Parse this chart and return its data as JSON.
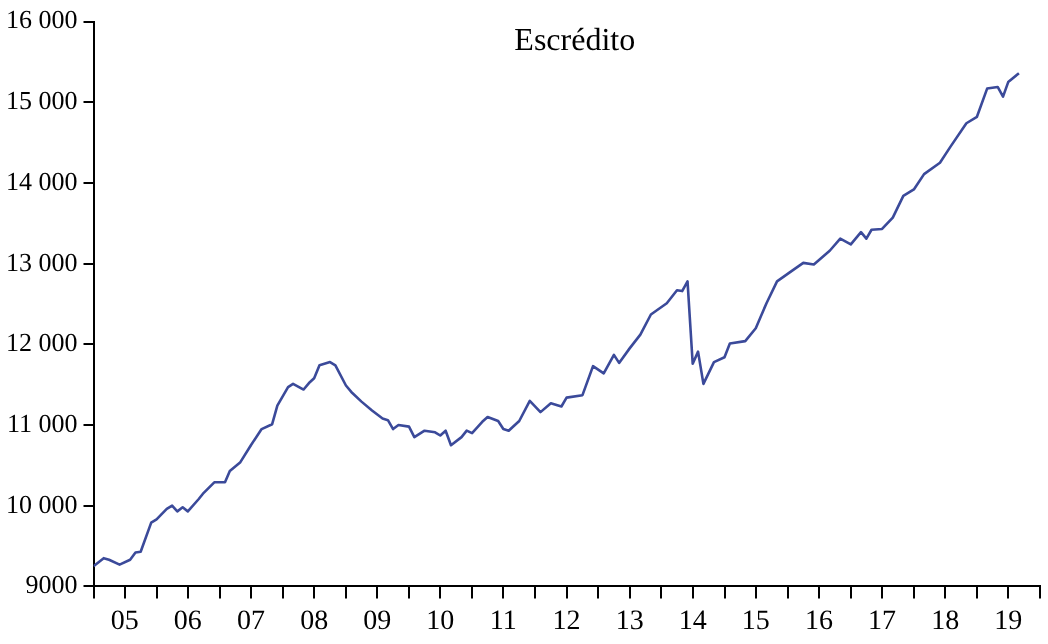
{
  "chart_data": {
    "type": "line",
    "title": "Escrédito",
    "x": [
      "2005-01",
      "2005-03",
      "2005-04",
      "2005-06",
      "2005-08",
      "2005-09",
      "2005-10",
      "2005-12",
      "2006-01",
      "2006-03",
      "2006-04",
      "2006-05",
      "2006-06",
      "2006-07",
      "2006-09",
      "2006-10",
      "2006-12",
      "2007-02",
      "2007-03",
      "2007-05",
      "2007-07",
      "2007-09",
      "2007-11",
      "2007-12",
      "2008-02",
      "2008-03",
      "2008-05",
      "2008-06",
      "2008-07",
      "2008-08",
      "2008-10",
      "2008-11",
      "2009-01",
      "2009-02",
      "2009-04",
      "2009-06",
      "2009-08",
      "2009-09",
      "2009-10",
      "2009-11",
      "2010-01",
      "2010-02",
      "2010-04",
      "2010-06",
      "2010-07",
      "2010-08",
      "2010-09",
      "2010-11",
      "2010-12",
      "2011-01",
      "2011-03",
      "2011-04",
      "2011-06",
      "2011-07",
      "2011-08",
      "2011-10",
      "2011-12",
      "2012-02",
      "2012-04",
      "2012-06",
      "2012-07",
      "2012-10",
      "2012-12",
      "2013-02",
      "2013-04",
      "2013-05",
      "2013-07",
      "2013-09",
      "2013-11",
      "2014-02",
      "2014-04",
      "2014-05",
      "2014-06",
      "2014-07",
      "2014-08",
      "2014-09",
      "2014-11",
      "2015-01",
      "2015-02",
      "2015-05",
      "2015-07",
      "2015-09",
      "2015-11",
      "2016-02",
      "2016-04",
      "2016-06",
      "2016-09",
      "2016-11",
      "2017-01",
      "2017-03",
      "2017-04",
      "2017-05",
      "2017-07",
      "2017-09",
      "2017-11",
      "2018-01",
      "2018-03",
      "2018-06",
      "2018-08",
      "2018-11",
      "2019-01",
      "2019-03",
      "2019-05",
      "2019-06",
      "2019-07",
      "2019-09"
    ],
    "values": [
      9250,
      9350,
      9330,
      9270,
      9330,
      9420,
      9430,
      9790,
      9830,
      9960,
      10000,
      9930,
      9980,
      9930,
      10080,
      10160,
      10290,
      10290,
      10430,
      10540,
      10750,
      10950,
      11010,
      11240,
      11470,
      11510,
      11440,
      11520,
      11580,
      11740,
      11780,
      11740,
      11490,
      11410,
      11290,
      11180,
      11080,
      11060,
      10950,
      11000,
      10980,
      10850,
      10930,
      10910,
      10870,
      10930,
      10750,
      10850,
      10930,
      10900,
      11040,
      11100,
      11050,
      10950,
      10930,
      11050,
      11300,
      11160,
      11270,
      11230,
      11340,
      11370,
      11730,
      11640,
      11870,
      11770,
      11950,
      12120,
      12370,
      12510,
      12670,
      12660,
      12780,
      11760,
      11910,
      11510,
      11780,
      11840,
      12010,
      12040,
      12200,
      12510,
      12780,
      12920,
      13010,
      12990,
      13160,
      13310,
      13240,
      13390,
      13310,
      13420,
      13430,
      13570,
      13840,
      13920,
      14110,
      14250,
      14450,
      14740,
      14820,
      15170,
      15190,
      15070,
      15250,
      15360
    ],
    "color": "#3b4a9a",
    "xlim": [
      "2005-01",
      "2020-01"
    ],
    "xticks": [
      {
        "value": "2005-01",
        "label": null
      },
      {
        "value": "2005-07",
        "label": "05"
      },
      {
        "value": "2006-01",
        "label": null
      },
      {
        "value": "2006-07",
        "label": "06"
      },
      {
        "value": "2007-01",
        "label": null
      },
      {
        "value": "2007-07",
        "label": "07"
      },
      {
        "value": "2008-01",
        "label": null
      },
      {
        "value": "2008-07",
        "label": "08"
      },
      {
        "value": "2009-01",
        "label": null
      },
      {
        "value": "2009-07",
        "label": "09"
      },
      {
        "value": "2010-01",
        "label": null
      },
      {
        "value": "2010-07",
        "label": "10"
      },
      {
        "value": "2011-01",
        "label": null
      },
      {
        "value": "2011-07",
        "label": "11"
      },
      {
        "value": "2012-01",
        "label": null
      },
      {
        "value": "2012-07",
        "label": "12"
      },
      {
        "value": "2013-01",
        "label": null
      },
      {
        "value": "2013-07",
        "label": "13"
      },
      {
        "value": "2014-01",
        "label": null
      },
      {
        "value": "2014-07",
        "label": "14"
      },
      {
        "value": "2015-01",
        "label": null
      },
      {
        "value": "2015-07",
        "label": "15"
      },
      {
        "value": "2016-01",
        "label": null
      },
      {
        "value": "2016-07",
        "label": "16"
      },
      {
        "value": "2017-01",
        "label": null
      },
      {
        "value": "2017-07",
        "label": "17"
      },
      {
        "value": "2018-01",
        "label": null
      },
      {
        "value": "2018-07",
        "label": "18"
      },
      {
        "value": "2019-01",
        "label": null
      },
      {
        "value": "2019-07",
        "label": "19"
      },
      {
        "value": "2020-01",
        "label": null
      }
    ],
    "ylim": [
      9000,
      16000
    ],
    "yticks": [
      9000,
      {
        "value": 10000,
        "label": "10 000"
      },
      {
        "value": 11000,
        "label": "11 000"
      },
      {
        "value": 12000,
        "label": "12 000"
      },
      {
        "value": 13000,
        "label": "13 000"
      },
      {
        "value": 14000,
        "label": "14 000"
      },
      {
        "value": 15000,
        "label": "15 000"
      },
      {
        "value": 16000,
        "label": "16 000"
      }
    ],
    "grid": false,
    "legend": false,
    "marker": "none",
    "line_style": "solid"
  }
}
